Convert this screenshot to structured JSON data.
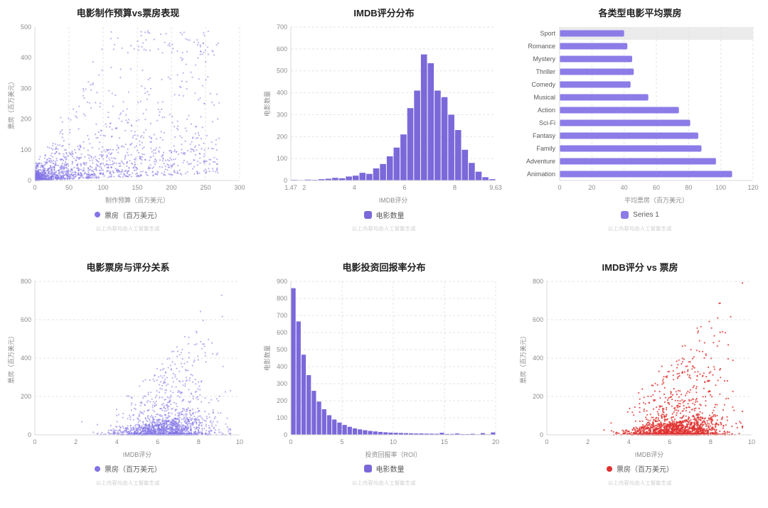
{
  "page": {
    "background": "#ffffff",
    "ai_note": "以上内容均由人工智能生成"
  },
  "chart_data": [
    {
      "type": "scatter",
      "title": "电影制作预算vs票房表现",
      "xlabel": "制作预算（百万美元）",
      "ylabel": "票房（百万美元）",
      "legend": "票房（百万美元）",
      "legend_marker": "circle",
      "color": "#8273e6",
      "point_opacity": 0.55,
      "xlim": [
        0,
        300
      ],
      "xticks": [
        0,
        50,
        100,
        150,
        200,
        250,
        300
      ],
      "ylim": [
        0,
        500
      ],
      "yticks": [
        0,
        100,
        200,
        300,
        400,
        500
      ],
      "grid": "v",
      "points_model": {
        "model": "budget_boxoffice",
        "n": 1700,
        "seed": 101,
        "description": "dense cloud of low-budget low-grossing films near origin; positive correlation; budgets mostly 0-150M, outliers to ~265M; box office mostly under 200M with outliers to ~470M"
      }
    },
    {
      "type": "histogram",
      "title": "IMDB评分分布",
      "xlabel": "IMDB评分",
      "ylabel": "电影数量",
      "legend": "电影数量",
      "legend_marker": "square",
      "color": "#7b68d9",
      "xlim": [
        1.47,
        9.63
      ],
      "xticks": [
        1.47,
        2,
        4,
        6,
        8,
        9.63
      ],
      "ylim": [
        0,
        700
      ],
      "yticks": [
        0,
        100,
        200,
        300,
        400,
        500,
        600,
        700
      ],
      "grid": "h",
      "bins": [
        3,
        2,
        4,
        3,
        6,
        8,
        12,
        10,
        18,
        22,
        35,
        30,
        55,
        75,
        110,
        150,
        210,
        330,
        410,
        575,
        535,
        410,
        380,
        300,
        230,
        140,
        80,
        40,
        15,
        6
      ],
      "bins_note": "30 equal bins spanning rating 1.47 to 9.63, peak ~575 films near rating 6.8"
    },
    {
      "type": "hbar",
      "title": "各类型电影平均票房",
      "xlabel": "平均票房（百万美元）",
      "legend": "Series 1",
      "legend_marker": "square",
      "color": "#8b7ce8",
      "categories": [
        "Sport",
        "Romance",
        "Mystery",
        "Thriller",
        "Comedy",
        "Musical",
        "Action",
        "Sci-Fi",
        "Fantasy",
        "Family",
        "Adventure",
        "Animation"
      ],
      "values": [
        40,
        42,
        45,
        46,
        44,
        55,
        74,
        81,
        86,
        88,
        97,
        107
      ],
      "xlim": [
        0,
        120
      ],
      "xticks": [
        0,
        20,
        40,
        60,
        80,
        100,
        120
      ],
      "grid": "v",
      "highlight_row": 0
    },
    {
      "type": "scatter",
      "title": "电影票房与评分关系",
      "xlabel": "IMDB评分",
      "ylabel": "票房（百万美元）",
      "legend": "票房（百万美元）",
      "legend_marker": "circle",
      "color": "#8273e6",
      "point_opacity": 0.55,
      "xlim": [
        0,
        10
      ],
      "xticks": [
        0,
        2,
        4,
        6,
        8,
        10
      ],
      "ylim": [
        0,
        800
      ],
      "yticks": [
        0,
        200,
        400,
        600,
        800
      ],
      "grid": "h",
      "points_model": {
        "model": "rating_boxoffice",
        "n": 1700,
        "seed": 23,
        "description": "ratings roughly normal around 6.4 (range ~2-9.3); box office mostly under 200M, spread widens with rating, outliers up to ~770M"
      }
    },
    {
      "type": "histogram",
      "title": "电影投资回报率分布",
      "xlabel": "投资回报率（ROI）",
      "ylabel": "电影数量",
      "legend": "电影数量",
      "legend_marker": "square",
      "color": "#7b68d9",
      "xlim": [
        0,
        20
      ],
      "xticks": [
        0,
        5,
        10,
        15,
        20
      ],
      "ylim": [
        0,
        900
      ],
      "yticks": [
        0,
        100,
        200,
        300,
        400,
        500,
        600,
        700,
        800,
        900
      ],
      "grid": "hv",
      "bins": [
        860,
        665,
        470,
        350,
        258,
        195,
        150,
        115,
        90,
        72,
        58,
        47,
        38,
        32,
        27,
        23,
        20,
        17,
        15,
        13,
        12,
        11,
        10,
        9,
        8,
        8,
        7,
        7,
        6,
        12,
        5,
        5,
        8,
        4,
        4,
        6,
        3,
        10,
        3,
        14
      ],
      "bins_note": "40 equal bins from ROI 0 to 20, exponential decay from ~860 with long thin tail"
    },
    {
      "type": "scatter",
      "title": "IMDB评分 vs 票房",
      "xlabel": "IMDB评分",
      "ylabel": "票房（百万美元）",
      "legend": "票房（百万美元）",
      "legend_marker": "circle",
      "color": "#e0312e",
      "point_opacity": 0.8,
      "xlim": [
        0,
        10
      ],
      "xticks": [
        0,
        2,
        4,
        6,
        8,
        10
      ],
      "ylim": [
        0,
        800
      ],
      "yticks": [
        0,
        200,
        400,
        600,
        800
      ],
      "grid": "h",
      "points_model": {
        "model": "rating_boxoffice",
        "n": 1700,
        "seed": 57,
        "description": "same rating vs box office cloud rendered in red; dense band under 200M, outliers up to ~770M around rating 6.5-8"
      }
    }
  ]
}
